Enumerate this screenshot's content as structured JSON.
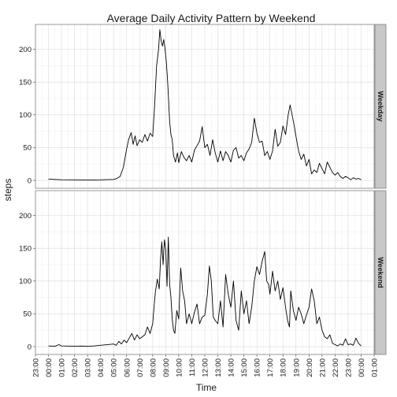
{
  "chart_data": {
    "type": "line",
    "title": "Average Daily Activity Pattern by Weekend",
    "xlabel": "Time",
    "ylabel": "steps",
    "x_tick_labels": [
      "23:00",
      "00:00",
      "01:00",
      "02:00",
      "03:00",
      "04:00",
      "05:00",
      "06:00",
      "07:00",
      "08:00",
      "09:00",
      "10:00",
      "11:00",
      "12:00",
      "13:00",
      "14:00",
      "15:00",
      "16:00",
      "17:00",
      "18:00",
      "19:00",
      "20:00",
      "21:00",
      "22:00",
      "23:00",
      "00:00",
      "01:00"
    ],
    "x_unit": "hours",
    "xlim": [
      -1,
      25
    ],
    "ylim": [
      -12,
      238
    ],
    "y_ticks": [
      0,
      50,
      100,
      150,
      200
    ],
    "grid": true,
    "facets": [
      {
        "label": "Weekday",
        "points": [
          [
            0,
            2
          ],
          [
            0.5,
            1.5
          ],
          [
            1,
            1
          ],
          [
            2,
            0.8
          ],
          [
            3,
            0.6
          ],
          [
            4,
            0.8
          ],
          [
            5,
            1.5
          ],
          [
            5.25,
            3
          ],
          [
            5.5,
            6
          ],
          [
            5.75,
            20
          ],
          [
            6,
            48
          ],
          [
            6.15,
            62
          ],
          [
            6.35,
            73
          ],
          [
            6.5,
            55
          ],
          [
            6.65,
            68
          ],
          [
            6.8,
            53
          ],
          [
            7,
            62
          ],
          [
            7.2,
            58
          ],
          [
            7.4,
            70
          ],
          [
            7.6,
            60
          ],
          [
            7.8,
            72
          ],
          [
            8,
            67
          ],
          [
            8.15,
            115
          ],
          [
            8.3,
            175
          ],
          [
            8.45,
            200
          ],
          [
            8.55,
            230
          ],
          [
            8.65,
            213
          ],
          [
            8.75,
            205
          ],
          [
            8.85,
            215
          ],
          [
            8.95,
            200
          ],
          [
            9.05,
            180
          ],
          [
            9.15,
            150
          ],
          [
            9.3,
            90
          ],
          [
            9.4,
            70
          ],
          [
            9.5,
            62
          ],
          [
            9.6,
            38
          ],
          [
            9.75,
            28
          ],
          [
            9.9,
            42
          ],
          [
            10,
            27
          ],
          [
            10.2,
            44
          ],
          [
            10.4,
            35
          ],
          [
            10.6,
            30
          ],
          [
            10.8,
            38
          ],
          [
            11,
            28
          ],
          [
            11.2,
            46
          ],
          [
            11.4,
            53
          ],
          [
            11.6,
            60
          ],
          [
            11.8,
            82
          ],
          [
            12,
            50
          ],
          [
            12.2,
            55
          ],
          [
            12.4,
            38
          ],
          [
            12.6,
            62
          ],
          [
            12.8,
            42
          ],
          [
            13,
            28
          ],
          [
            13.2,
            45
          ],
          [
            13.4,
            30
          ],
          [
            13.6,
            44
          ],
          [
            13.8,
            38
          ],
          [
            14,
            28
          ],
          [
            14.2,
            46
          ],
          [
            14.4,
            50
          ],
          [
            14.6,
            34
          ],
          [
            14.8,
            38
          ],
          [
            15,
            30
          ],
          [
            15.2,
            42
          ],
          [
            15.4,
            48
          ],
          [
            15.6,
            58
          ],
          [
            15.8,
            95
          ],
          [
            16,
            72
          ],
          [
            16.2,
            58
          ],
          [
            16.4,
            60
          ],
          [
            16.6,
            38
          ],
          [
            16.8,
            44
          ],
          [
            17,
            32
          ],
          [
            17.2,
            45
          ],
          [
            17.4,
            78
          ],
          [
            17.6,
            52
          ],
          [
            17.8,
            58
          ],
          [
            18,
            83
          ],
          [
            18.2,
            70
          ],
          [
            18.4,
            100
          ],
          [
            18.55,
            115
          ],
          [
            18.7,
            100
          ],
          [
            18.85,
            85
          ],
          [
            19,
            67
          ],
          [
            19.2,
            45
          ],
          [
            19.4,
            32
          ],
          [
            19.6,
            40
          ],
          [
            19.8,
            22
          ],
          [
            20,
            32
          ],
          [
            20.2,
            10
          ],
          [
            20.4,
            16
          ],
          [
            20.6,
            12
          ],
          [
            20.8,
            26
          ],
          [
            21,
            18
          ],
          [
            21.2,
            10
          ],
          [
            21.4,
            28
          ],
          [
            21.6,
            20
          ],
          [
            21.8,
            12
          ],
          [
            22,
            8
          ],
          [
            22.2,
            12
          ],
          [
            22.4,
            6
          ],
          [
            22.6,
            3
          ],
          [
            22.8,
            6
          ],
          [
            23,
            4
          ],
          [
            23.2,
            1
          ],
          [
            23.4,
            4
          ],
          [
            23.6,
            2
          ],
          [
            23.8,
            3
          ],
          [
            24,
            1
          ]
        ]
      },
      {
        "label": "Weekend",
        "points": [
          [
            0,
            1
          ],
          [
            0.5,
            0.5
          ],
          [
            0.8,
            3
          ],
          [
            1,
            1
          ],
          [
            1.5,
            0.8
          ],
          [
            2,
            0.5
          ],
          [
            2.5,
            0.8
          ],
          [
            3,
            0.5
          ],
          [
            3.5,
            1
          ],
          [
            4,
            2
          ],
          [
            4.5,
            3
          ],
          [
            5,
            4
          ],
          [
            5.2,
            2
          ],
          [
            5.4,
            8
          ],
          [
            5.6,
            4
          ],
          [
            5.8,
            10
          ],
          [
            6,
            6
          ],
          [
            6.2,
            13
          ],
          [
            6.4,
            20
          ],
          [
            6.6,
            10
          ],
          [
            6.8,
            18
          ],
          [
            7,
            12
          ],
          [
            7.2,
            15
          ],
          [
            7.4,
            18
          ],
          [
            7.6,
            30
          ],
          [
            7.8,
            20
          ],
          [
            8,
            35
          ],
          [
            8.1,
            60
          ],
          [
            8.2,
            82
          ],
          [
            8.35,
            103
          ],
          [
            8.5,
            88
          ],
          [
            8.6,
            132
          ],
          [
            8.7,
            160
          ],
          [
            8.8,
            125
          ],
          [
            8.9,
            163
          ],
          [
            9,
            148
          ],
          [
            9.1,
            92
          ],
          [
            9.2,
            167
          ],
          [
            9.3,
            95
          ],
          [
            9.4,
            75
          ],
          [
            9.5,
            42
          ],
          [
            9.6,
            25
          ],
          [
            9.7,
            20
          ],
          [
            9.85,
            55
          ],
          [
            10,
            42
          ],
          [
            10.15,
            120
          ],
          [
            10.3,
            85
          ],
          [
            10.45,
            70
          ],
          [
            10.6,
            35
          ],
          [
            10.8,
            50
          ],
          [
            11,
            35
          ],
          [
            11.2,
            52
          ],
          [
            11.4,
            65
          ],
          [
            11.6,
            35
          ],
          [
            11.8,
            45
          ],
          [
            12,
            48
          ],
          [
            12.2,
            80
          ],
          [
            12.35,
            123
          ],
          [
            12.5,
            100
          ],
          [
            12.65,
            45
          ],
          [
            12.8,
            40
          ],
          [
            13,
            35
          ],
          [
            13.2,
            70
          ],
          [
            13.4,
            30
          ],
          [
            13.6,
            110
          ],
          [
            13.8,
            80
          ],
          [
            14,
            60
          ],
          [
            14.2,
            100
          ],
          [
            14.4,
            40
          ],
          [
            14.6,
            25
          ],
          [
            14.8,
            85
          ],
          [
            15,
            50
          ],
          [
            15.2,
            70
          ],
          [
            15.4,
            35
          ],
          [
            15.6,
            60
          ],
          [
            15.8,
            100
          ],
          [
            16,
            122
          ],
          [
            16.2,
            110
          ],
          [
            16.4,
            130
          ],
          [
            16.6,
            145
          ],
          [
            16.75,
            100
          ],
          [
            16.9,
            95
          ],
          [
            17,
            80
          ],
          [
            17.2,
            115
          ],
          [
            17.4,
            85
          ],
          [
            17.6,
            100
          ],
          [
            17.8,
            72
          ],
          [
            18,
            90
          ],
          [
            18.2,
            60
          ],
          [
            18.35,
            40
          ],
          [
            18.5,
            30
          ],
          [
            18.6,
            85
          ],
          [
            18.8,
            55
          ],
          [
            19,
            40
          ],
          [
            19.2,
            60
          ],
          [
            19.4,
            50
          ],
          [
            19.6,
            35
          ],
          [
            19.8,
            48
          ],
          [
            20,
            60
          ],
          [
            20.2,
            88
          ],
          [
            20.4,
            70
          ],
          [
            20.6,
            35
          ],
          [
            20.8,
            45
          ],
          [
            21,
            25
          ],
          [
            21.2,
            15
          ],
          [
            21.4,
            12
          ],
          [
            21.6,
            18
          ],
          [
            21.8,
            5
          ],
          [
            22,
            3
          ],
          [
            22.2,
            1
          ],
          [
            22.4,
            4
          ],
          [
            22.6,
            2
          ],
          [
            22.8,
            12
          ],
          [
            23,
            3
          ],
          [
            23.2,
            4
          ],
          [
            23.4,
            2
          ],
          [
            23.6,
            13
          ],
          [
            23.8,
            5
          ],
          [
            24,
            1
          ]
        ]
      }
    ]
  }
}
